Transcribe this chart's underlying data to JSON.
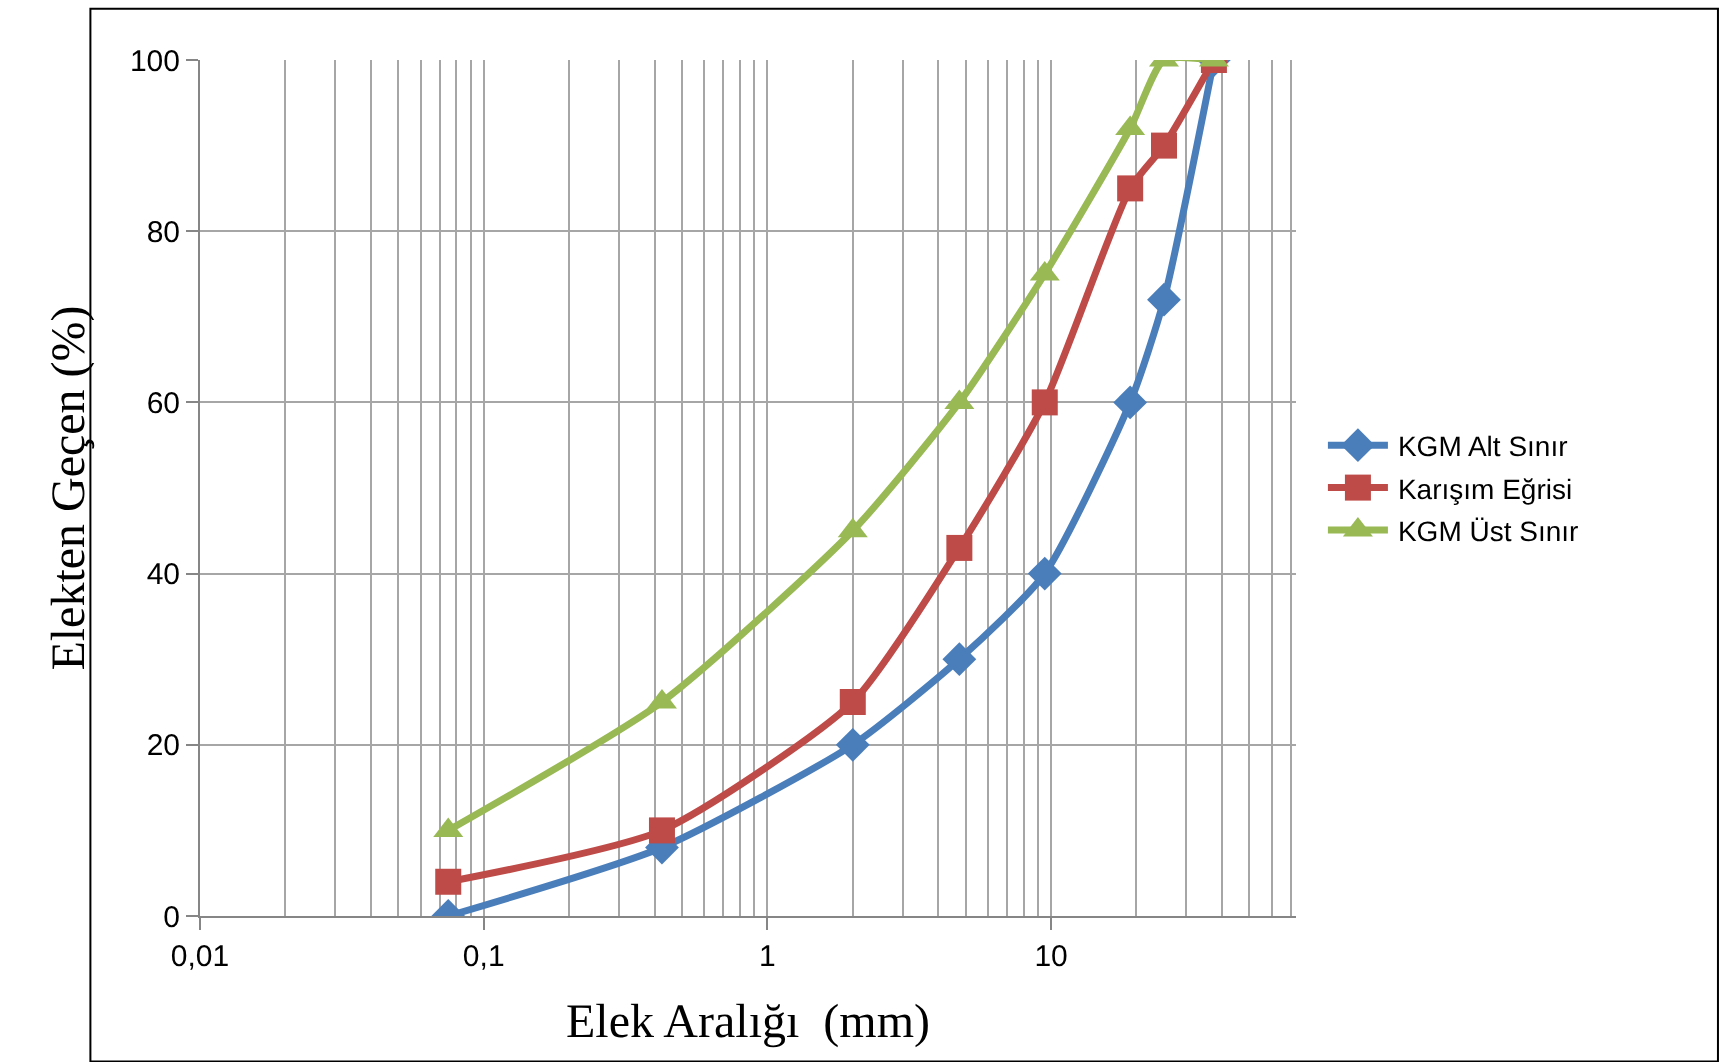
{
  "chart_data": {
    "type": "line",
    "xlabel": "Elek Aralığı  (mm)",
    "ylabel": "Elekten Geçen (%)",
    "log": "x",
    "grid": true,
    "legend": "right",
    "x": [
      0.075,
      0.425,
      2,
      4.75,
      9.5,
      19,
      25,
      37.5
    ],
    "xlim": [
      0.01,
      73
    ],
    "xticks": [
      {
        "value": 0.01,
        "label": "0,01"
      },
      {
        "value": 0.1,
        "label": "0,1"
      },
      1,
      10
    ],
    "ylim": [
      0,
      100
    ],
    "yticks": [
      0,
      20,
      40,
      60,
      80,
      100
    ],
    "series": [
      {
        "name": "KGM Alt Sınır",
        "color": "#4a7ebb",
        "marker": "diamond",
        "values": [
          0,
          8,
          20,
          30,
          40,
          60,
          72,
          100
        ]
      },
      {
        "name": "Karışım Eğrisi",
        "color": "#be4b48",
        "marker": "square",
        "values": [
          4,
          10,
          25,
          43,
          60,
          85,
          90,
          100
        ]
      },
      {
        "name": "KGM Üst Sınır",
        "color": "#98b954",
        "marker": "triangle",
        "values": [
          10,
          25,
          45,
          60,
          75,
          92,
          100,
          100
        ]
      }
    ]
  }
}
